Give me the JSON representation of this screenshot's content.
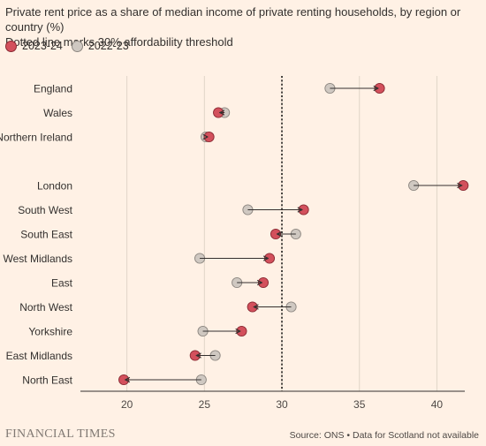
{
  "header": {
    "title": "Private rent price as a share of median income of private renting households, by region or country (%)",
    "subtitle": "Dotted line marks 30% affordability threshold"
  },
  "legend": {
    "current_label": "2023-24",
    "previous_label": "2022-23"
  },
  "colors": {
    "current": "#d3505c",
    "previous": "#cfc8c1",
    "background": "#fff1e5",
    "arrow": "#33302e",
    "grid": "#e0d5c8"
  },
  "footer": {
    "brand": "FINANCIAL TIMES",
    "source": "Source: ONS • Data for Scotland not available"
  },
  "chart_data": {
    "type": "dot-arrow",
    "title": "Private rent price as a share of median income of private renting households, by region or country (%)",
    "subtitle": "Dotted line marks 30% affordability threshold",
    "xlim": [
      17,
      41.8
    ],
    "xticks": [
      20,
      25,
      30,
      35,
      40
    ],
    "reference_line": 30,
    "series_names": [
      "2023-24",
      "2022-23"
    ],
    "rows": [
      {
        "label": "England",
        "v2324": 36.3,
        "v2223": 33.1
      },
      {
        "label": "Wales",
        "v2324": 25.9,
        "v2223": 26.3
      },
      {
        "label": "Northern Ireland",
        "v2324": 25.3,
        "v2223": 25.1
      },
      {
        "label": "",
        "v2324": null,
        "v2223": null
      },
      {
        "label": "London",
        "v2324": 41.7,
        "v2223": 38.5
      },
      {
        "label": "South West",
        "v2324": 31.4,
        "v2223": 27.8
      },
      {
        "label": "South East",
        "v2324": 29.6,
        "v2223": 30.9
      },
      {
        "label": "West Midlands",
        "v2324": 29.2,
        "v2223": 24.7
      },
      {
        "label": "East",
        "v2324": 28.8,
        "v2223": 27.1
      },
      {
        "label": "North West",
        "v2324": 28.1,
        "v2223": 30.6
      },
      {
        "label": "Yorkshire",
        "v2324": 27.4,
        "v2223": 24.9
      },
      {
        "label": "East Midlands",
        "v2324": 24.4,
        "v2223": 25.7
      },
      {
        "label": "North East",
        "v2324": 19.8,
        "v2223": 24.8
      }
    ]
  }
}
